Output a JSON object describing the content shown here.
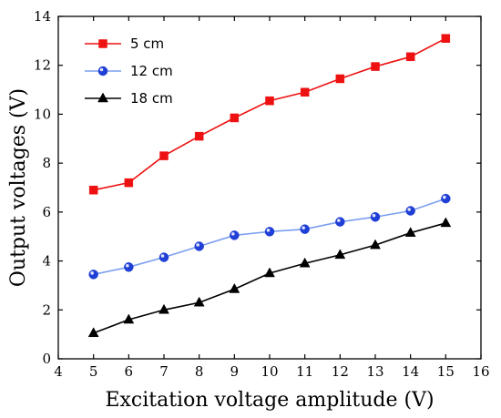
{
  "chart_data": {
    "type": "line",
    "xlabel": "Excitation voltage amplitude (V)",
    "ylabel": "Output voltages (V)",
    "xlim": [
      4,
      16
    ],
    "ylim": [
      0,
      14
    ],
    "xticks": [
      4,
      5,
      6,
      7,
      8,
      9,
      10,
      11,
      12,
      13,
      14,
      15,
      16
    ],
    "yticks": [
      0,
      2,
      4,
      6,
      8,
      10,
      12,
      14
    ],
    "grid": false,
    "legend_position": "top-left",
    "x": [
      5,
      6,
      7,
      8,
      9,
      10,
      11,
      12,
      13,
      14,
      15
    ],
    "series": [
      {
        "name": "5 cm",
        "color": "#ee1111",
        "marker": "square",
        "values": [
          6.9,
          7.2,
          8.3,
          9.1,
          9.85,
          10.55,
          10.9,
          11.45,
          11.95,
          12.35,
          13.1
        ]
      },
      {
        "name": "12 cm",
        "color": "#7b9ef0",
        "marker": "circle",
        "values": [
          3.45,
          3.75,
          4.15,
          4.6,
          5.05,
          5.2,
          5.3,
          5.6,
          5.8,
          6.05,
          6.55
        ]
      },
      {
        "name": "18 cm",
        "color": "#000000",
        "marker": "triangle",
        "values": [
          1.05,
          1.6,
          2.0,
          2.3,
          2.85,
          3.5,
          3.9,
          4.25,
          4.65,
          5.15,
          5.55
        ]
      }
    ]
  }
}
